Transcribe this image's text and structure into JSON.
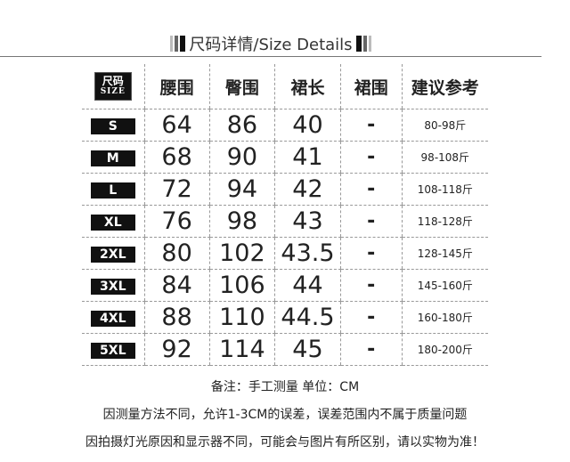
{
  "title": {
    "text": "尺码详情/Size Details"
  },
  "table": {
    "size_header": {
      "cn": "尺码",
      "en": "SIZE"
    },
    "headers": [
      "腰围",
      "臀围",
      "裙长",
      "裙围",
      "建议参考"
    ],
    "rows": [
      {
        "size": "S",
        "waist": "64",
        "hip": "86",
        "length": "40",
        "hem": "-",
        "rec": "80-98斤"
      },
      {
        "size": "M",
        "waist": "68",
        "hip": "90",
        "length": "41",
        "hem": "-",
        "rec": "98-108斤"
      },
      {
        "size": "L",
        "waist": "72",
        "hip": "94",
        "length": "42",
        "hem": "-",
        "rec": "108-118斤"
      },
      {
        "size": "XL",
        "waist": "76",
        "hip": "98",
        "length": "43",
        "hem": "-",
        "rec": "118-128斤"
      },
      {
        "size": "2XL",
        "waist": "80",
        "hip": "102",
        "length": "43.5",
        "hem": "-",
        "rec": "128-145斤"
      },
      {
        "size": "3XL",
        "waist": "84",
        "hip": "106",
        "length": "44",
        "hem": "-",
        "rec": "145-160斤"
      },
      {
        "size": "4XL",
        "waist": "88",
        "hip": "110",
        "length": "44.5",
        "hem": "-",
        "rec": "160-180斤"
      },
      {
        "size": "5XL",
        "waist": "92",
        "hip": "114",
        "length": "45",
        "hem": "-",
        "rec": "180-200斤"
      }
    ]
  },
  "notes": [
    "备注：手工测量  单位：CM",
    "因测量方法不同，允许1-3CM的误差，误差范围内不属于质量问题",
    "因拍摄灯光原因和显示器不同，可能会与图片有所区别，请以实物为准！"
  ]
}
